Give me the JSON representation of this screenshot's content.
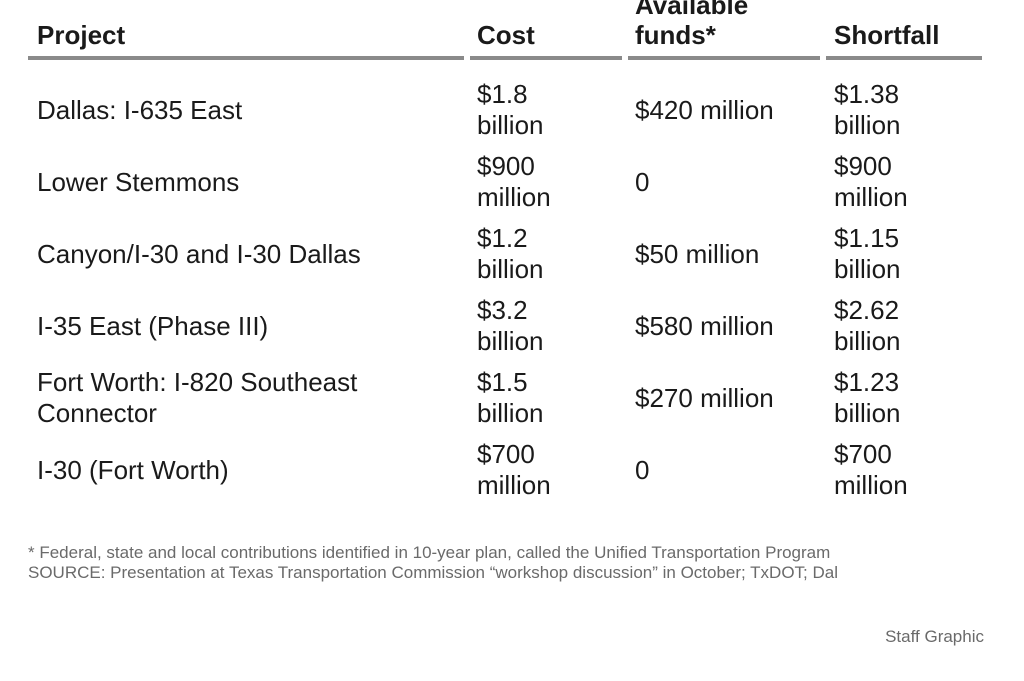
{
  "chart_data": {
    "type": "table",
    "columns": [
      "Project",
      "Cost",
      "Available funds*",
      "Shortfall"
    ],
    "rows": [
      [
        "Dallas: I-635 East",
        "$1.8 billion",
        "$420 million",
        "$1.38 billion"
      ],
      [
        "Lower Stemmons",
        "$900 million",
        "0",
        "$900 million"
      ],
      [
        "Canyon/I-30 and I-30 Dallas",
        "$1.2 billion",
        "$50 million",
        "$1.15 billion"
      ],
      [
        "I-35 East (Phase III)",
        "$3.2 billion",
        "$580 million",
        "$2.62 billion"
      ],
      [
        "Fort Worth: I-820 Southeast Connector",
        "$1.5 billion",
        "$270 million",
        "$1.23 billion"
      ],
      [
        "I-30 (Fort Worth)",
        "$700 million",
        "0",
        "$700 million"
      ]
    ],
    "header_rule_color": "#8a8a8a"
  },
  "footnote": "* Federal, state and local contributions identified in 10-year plan, called the Unified Transportation Program",
  "source": "SOURCE: Presentation at Texas Transportation Commission “workshop discussion” in October; TxDOT; Dal",
  "credit": "Staff Graphic"
}
